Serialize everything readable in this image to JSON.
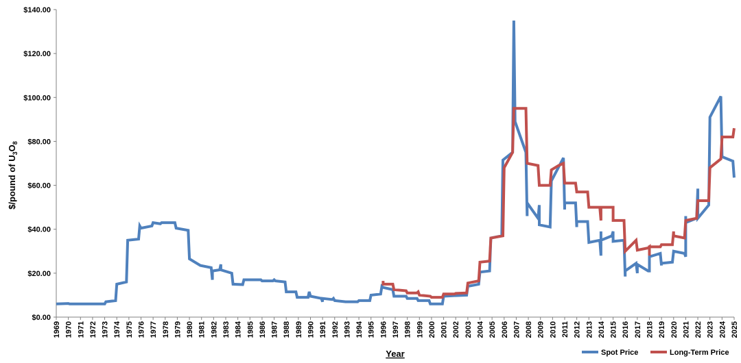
{
  "chart_data": {
    "type": "line",
    "xlabel": "Year",
    "ylabel_parts": [
      "$/pound of U",
      "3",
      "O",
      "8"
    ],
    "ylim": [
      0,
      140
    ],
    "y_ticks": [
      "$0.00",
      "$20.00",
      "$40.00",
      "$60.00",
      "$80.00",
      "$100.00",
      "$120.00",
      "$140.00"
    ],
    "x_ticks": [
      "1969",
      "1970",
      "1971",
      "1972",
      "1973",
      "1974",
      "1975",
      "1976",
      "1977",
      "1978",
      "1979",
      "1980",
      "1981",
      "1982",
      "1983",
      "1984",
      "1985",
      "1986",
      "1987",
      "1988",
      "1989",
      "1990",
      "1991",
      "1992",
      "1993",
      "1994",
      "1995",
      "1996",
      "1997",
      "1998",
      "1999",
      "2000",
      "2001",
      "2002",
      "2003",
      "2004",
      "2005",
      "2006",
      "2007",
      "2008",
      "2009",
      "2010",
      "2011",
      "2012",
      "2013",
      "2014",
      "2015",
      "2016",
      "2017",
      "2018",
      "2019",
      "2020",
      "2021",
      "2022",
      "2023",
      "2024",
      "2025"
    ],
    "xlim": [
      1969,
      2025
    ],
    "legend_position": "bottom-right",
    "series": [
      {
        "name": "Spot Price",
        "color": "#4f81bd",
        "points": [
          [
            1969,
            6
          ],
          [
            1970,
            6.2
          ],
          [
            1970.1,
            6
          ],
          [
            1973,
            6
          ],
          [
            1973.1,
            7
          ],
          [
            1973.9,
            7.5
          ],
          [
            1974,
            15
          ],
          [
            1974.8,
            16
          ],
          [
            1974.9,
            35
          ],
          [
            1975.8,
            35.5
          ],
          [
            1975.9,
            41.5
          ],
          [
            1976,
            40.5
          ],
          [
            1976.9,
            41.5
          ],
          [
            1977,
            43
          ],
          [
            1977.6,
            42.5
          ],
          [
            1977.7,
            43
          ],
          [
            1978.8,
            43
          ],
          [
            1978.9,
            40.5
          ],
          [
            1979.9,
            39.5
          ],
          [
            1980,
            26.5
          ],
          [
            1980.9,
            23.5
          ],
          [
            1981.8,
            22.5
          ],
          [
            1981.9,
            17
          ],
          [
            1981.9,
            21
          ],
          [
            1982.5,
            21.5
          ],
          [
            1982.6,
            24
          ],
          [
            1982.6,
            21.5
          ],
          [
            1983.5,
            20
          ],
          [
            1983.6,
            15
          ],
          [
            1984.4,
            14.8
          ],
          [
            1984.5,
            17
          ],
          [
            1985.9,
            17
          ],
          [
            1986,
            16.5
          ],
          [
            1986.9,
            16.5
          ],
          [
            1987,
            17
          ],
          [
            1987.1,
            16.5
          ],
          [
            1987.9,
            16
          ],
          [
            1988,
            11.5
          ],
          [
            1988.8,
            11.5
          ],
          [
            1988.9,
            9
          ],
          [
            1989.8,
            9
          ],
          [
            1989.9,
            11.5
          ],
          [
            1990,
            9.5
          ],
          [
            1990.9,
            8.5
          ],
          [
            1991,
            7
          ],
          [
            1991,
            8.5
          ],
          [
            1991.8,
            8
          ],
          [
            1991.9,
            8.5
          ],
          [
            1992,
            7.5
          ],
          [
            1992.9,
            7
          ],
          [
            1993,
            7
          ],
          [
            1993.9,
            7
          ],
          [
            1994,
            7.5
          ],
          [
            1994.9,
            7.5
          ],
          [
            1995,
            10
          ],
          [
            1995.8,
            10.5
          ],
          [
            1995.9,
            14
          ],
          [
            1996,
            13.5
          ],
          [
            1996.8,
            12.5
          ],
          [
            1996.9,
            9.5
          ],
          [
            1997.9,
            9.5
          ],
          [
            1998,
            8.5
          ],
          [
            1998.8,
            8.5
          ],
          [
            1998.9,
            7.5
          ],
          [
            1999.8,
            7.5
          ],
          [
            1999.9,
            6
          ],
          [
            2000.9,
            6
          ],
          [
            2001,
            9.5
          ],
          [
            2001.9,
            9.8
          ],
          [
            2002,
            9.8
          ],
          [
            2002.9,
            10
          ],
          [
            2003,
            14
          ],
          [
            2003.9,
            15
          ],
          [
            2004,
            20.5
          ],
          [
            2004.8,
            21
          ],
          [
            2004.9,
            36
          ],
          [
            2005.8,
            37
          ],
          [
            2005.9,
            71.5
          ],
          [
            2006.7,
            75
          ],
          [
            2006.8,
            135
          ],
          [
            2006.9,
            89
          ],
          [
            2007.8,
            75
          ],
          [
            2007.9,
            46
          ],
          [
            2007.9,
            52
          ],
          [
            2008.8,
            45
          ],
          [
            2008.9,
            51
          ],
          [
            2008.9,
            42
          ],
          [
            2009.8,
            41
          ],
          [
            2009.9,
            62
          ],
          [
            2010.9,
            72.5
          ],
          [
            2011,
            49
          ],
          [
            2011,
            52
          ],
          [
            2011.9,
            52
          ],
          [
            2012,
            41
          ],
          [
            2012,
            43.5
          ],
          [
            2012.9,
            43.5
          ],
          [
            2013,
            34
          ],
          [
            2013.9,
            35
          ],
          [
            2014,
            28
          ],
          [
            2014,
            39
          ],
          [
            2014,
            35
          ],
          [
            2014.9,
            37
          ],
          [
            2015,
            39
          ],
          [
            2015,
            34.5
          ],
          [
            2015.9,
            35
          ],
          [
            2016,
            18.5
          ],
          [
            2016,
            21
          ],
          [
            2016.9,
            24.5
          ],
          [
            2017,
            20
          ],
          [
            2017,
            24
          ],
          [
            2017.9,
            21
          ],
          [
            2018,
            21
          ],
          [
            2018,
            27.5
          ],
          [
            2018.9,
            29
          ],
          [
            2019,
            23.5
          ],
          [
            2019,
            24.5
          ],
          [
            2019.9,
            25
          ],
          [
            2020,
            30
          ],
          [
            2020.9,
            29
          ],
          [
            2021,
            27.5
          ],
          [
            2021,
            46
          ],
          [
            2021,
            43
          ],
          [
            2021.9,
            45
          ],
          [
            2022,
            58.5
          ],
          [
            2022,
            45
          ],
          [
            2022.9,
            51
          ],
          [
            2023,
            91
          ],
          [
            2023.9,
            100.5
          ],
          [
            2024,
            73
          ],
          [
            2024.9,
            71
          ],
          [
            2025,
            63.5
          ]
        ]
      },
      {
        "name": "Long-Term Price",
        "color": "#c0504d",
        "points": [
          [
            1996,
            16.5
          ],
          [
            1996,
            15
          ],
          [
            1996.8,
            15
          ],
          [
            1996.9,
            12.5
          ],
          [
            1997.9,
            12
          ],
          [
            1998,
            11
          ],
          [
            1998.8,
            11
          ],
          [
            1998.9,
            11.5
          ],
          [
            1999,
            10
          ],
          [
            1999.9,
            9.5
          ],
          [
            2000,
            9
          ],
          [
            2000.9,
            9
          ],
          [
            2001,
            10.5
          ],
          [
            2001.9,
            10.5
          ],
          [
            2002,
            10.8
          ],
          [
            2002.9,
            11
          ],
          [
            2003,
            15.5
          ],
          [
            2003.9,
            16.5
          ],
          [
            2004,
            25
          ],
          [
            2004.8,
            25.5
          ],
          [
            2004.9,
            36
          ],
          [
            2005.9,
            37
          ],
          [
            2006,
            68
          ],
          [
            2006.7,
            75
          ],
          [
            2006.8,
            95
          ],
          [
            2007.8,
            95
          ],
          [
            2007.9,
            70
          ],
          [
            2008.8,
            69
          ],
          [
            2008.9,
            60
          ],
          [
            2009.8,
            60
          ],
          [
            2009.9,
            67
          ],
          [
            2010.5,
            69
          ],
          [
            2010.9,
            70
          ],
          [
            2011,
            61
          ],
          [
            2011.9,
            61
          ],
          [
            2012,
            57
          ],
          [
            2012.9,
            57
          ],
          [
            2013,
            50
          ],
          [
            2013.9,
            50
          ],
          [
            2014,
            44
          ],
          [
            2014,
            50
          ],
          [
            2014.9,
            50
          ],
          [
            2015,
            50
          ],
          [
            2015,
            44
          ],
          [
            2015.9,
            44
          ],
          [
            2016,
            30
          ],
          [
            2016.9,
            35
          ],
          [
            2017,
            30.5
          ],
          [
            2017.9,
            31.5
          ],
          [
            2018,
            32
          ],
          [
            2018,
            28
          ],
          [
            2018,
            32
          ],
          [
            2018.9,
            32
          ],
          [
            2019,
            33
          ],
          [
            2019.9,
            33
          ],
          [
            2020,
            39
          ],
          [
            2020,
            37
          ],
          [
            2020.9,
            36
          ],
          [
            2021,
            44
          ],
          [
            2021.9,
            45
          ],
          [
            2022,
            53
          ],
          [
            2022.9,
            53
          ],
          [
            2023,
            68
          ],
          [
            2023.9,
            72
          ],
          [
            2024,
            82
          ],
          [
            2024.9,
            82
          ],
          [
            2025,
            86
          ]
        ]
      }
    ]
  }
}
